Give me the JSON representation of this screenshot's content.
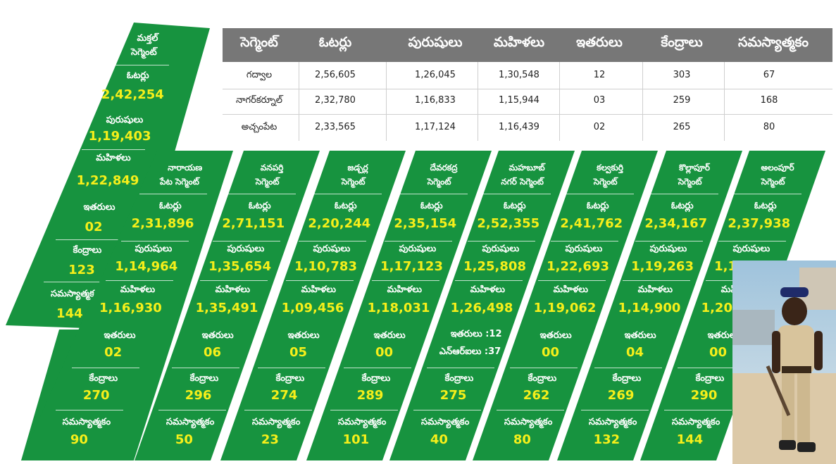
{
  "table": {
    "headers": [
      "సెగ్మెంట్",
      "ఓటర్లు",
      "పురుషులు",
      "మహిళలు",
      "ఇతరులు",
      "కేంద్రాలు",
      "సమస్యాత్మకం"
    ],
    "rows": [
      [
        "గద్వాల",
        "2,56,605",
        "1,26,045",
        "1,30,548",
        "12",
        "303",
        "67"
      ],
      [
        "నాగర్‌కర్నూల్",
        "2,32,780",
        "1,16,833",
        "1,15,944",
        "03",
        "259",
        "168"
      ],
      [
        "అచ్చంపేట",
        "2,33,565",
        "1,17,124",
        "1,16,439",
        "02",
        "265",
        "80"
      ]
    ]
  },
  "labels": {
    "voters": "ఓటర్లు",
    "men": "పురుషులు",
    "women": "మహిళలు",
    "others": "ఇతరులు",
    "centers": "కేంద్రాలు",
    "problematic": "సమస్యాత్మకం"
  },
  "segments": [
    {
      "name1": "మక్తల్",
      "name2": "సెగ్మెంట్",
      "voters": "2,42,254",
      "men": "1,19,403",
      "women": "1,22,849",
      "others": "02",
      "centers": "123",
      "problematic": "144"
    },
    {
      "name1": "నారాయణ",
      "name2": "పేట సెగ్మెంట్",
      "voters": "2,31,896",
      "men": "1,14,964",
      "women": "1,16,930",
      "others": "02",
      "centers": "270",
      "problematic": "90"
    },
    {
      "name1": "వనపర్తి",
      "name2": "సెగ్మెంట్",
      "voters": "2,71,151",
      "men": "1,35,654",
      "women": "1,35,491",
      "others": "06",
      "centers": "296",
      "problematic": "50"
    },
    {
      "name1": "జడ్చర్ల",
      "name2": "సెగ్మెంట్",
      "voters": "2,20,244",
      "men": "1,10,783",
      "women": "1,09,456",
      "others": "05",
      "centers": "274",
      "problematic": "23"
    },
    {
      "name1": "దేవరకద్ర",
      "name2": "సెగ్మెంట్",
      "voters": "2,35,154",
      "men": "1,17,123",
      "women": "1,18,031",
      "others": "00",
      "centers": "289",
      "problematic": "101"
    },
    {
      "name1": "మహబూబ్",
      "name2": "నగర్ సెగ్మెంట్",
      "voters": "2,52,355",
      "men": "1,25,808",
      "women": "1,26,498",
      "others_line": "ఇతరులు :12",
      "nri_line": "ఎన్ఆర్ఐలు :37",
      "centers": "275",
      "problematic": "40"
    },
    {
      "name1": "కల్వకుర్తి",
      "name2": "సెగ్మెంట్",
      "voters": "2,41,762",
      "men": "1,22,693",
      "women": "1,19,062",
      "others": "00",
      "centers": "262",
      "problematic": "80"
    },
    {
      "name1": "కొల్లాపూర్",
      "name2": "సెగ్మెంట్",
      "voters": "2,34,167",
      "men": "1,19,263",
      "women": "1,14,900",
      "others": "04",
      "centers": "269",
      "problematic": "132"
    },
    {
      "name1": "అలంపూర్",
      "name2": "సెగ్మెంట్",
      "voters": "2,37,938",
      "men": "1,17,850",
      "women": "1,20,081",
      "others": "00",
      "centers": "290",
      "problematic": "144"
    }
  ],
  "colors": {
    "green": "#17933f",
    "yellow": "#f6ef1a",
    "header_gray": "#777777"
  }
}
